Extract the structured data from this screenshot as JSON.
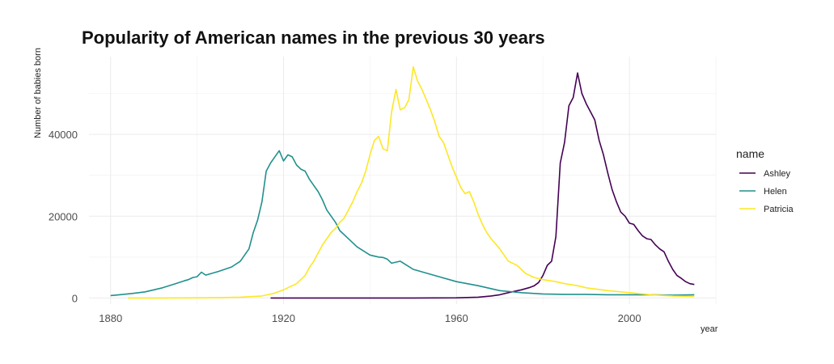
{
  "chart_data": {
    "type": "line",
    "title": "Popularity of American names in the previous 30 years",
    "xlabel": "year",
    "ylabel": "Number of babies born",
    "xlim": [
      1875,
      2020
    ],
    "ylim": [
      -1500,
      59000
    ],
    "x_ticks": [
      1880,
      1920,
      1960,
      2000
    ],
    "x_tick_labels": [
      "1880",
      "1920",
      "1960",
      "2000"
    ],
    "y_ticks": [
      0,
      20000,
      40000
    ],
    "y_tick_labels": [
      "0",
      "20000",
      "40000"
    ],
    "grid": true,
    "legend": {
      "title": "name",
      "position": "right"
    },
    "series": [
      {
        "name": "Ashley",
        "color": "#440154",
        "x": [
          1917,
          1930,
          1940,
          1950,
          1960,
          1965,
          1968,
          1970,
          1972,
          1975,
          1977,
          1978,
          1979,
          1980,
          1981,
          1982,
          1983,
          1984,
          1985,
          1986,
          1987,
          1988,
          1989,
          1990,
          1991,
          1992,
          1993,
          1994,
          1995,
          1996,
          1997,
          1998,
          1999,
          2000,
          2001,
          2002,
          2003,
          2004,
          2005,
          2006,
          2007,
          2008,
          2009,
          2010,
          2011,
          2012,
          2013,
          2014,
          2015
        ],
        "y": [
          0,
          0,
          0,
          0,
          50,
          200,
          500,
          800,
          1300,
          2000,
          2600,
          3000,
          3800,
          5500,
          8000,
          9000,
          15000,
          33000,
          38000,
          47000,
          49000,
          55000,
          50000,
          47500,
          45500,
          43500,
          38500,
          35000,
          30500,
          26500,
          23500,
          21000,
          20000,
          18300,
          18000,
          16500,
          15200,
          14500,
          14300,
          13000,
          12000,
          11300,
          9000,
          7000,
          5500,
          4800,
          4000,
          3500,
          3300
        ]
      },
      {
        "name": "Helen",
        "color": "#21908d",
        "x": [
          1880,
          1882,
          1885,
          1888,
          1890,
          1892,
          1895,
          1897,
          1898,
          1899,
          1900,
          1901,
          1902,
          1905,
          1908,
          1910,
          1911,
          1912,
          1913,
          1914,
          1915,
          1916,
          1917,
          1918,
          1919,
          1920,
          1921,
          1922,
          1923,
          1924,
          1925,
          1926,
          1927,
          1928,
          1929,
          1930,
          1932,
          1933,
          1935,
          1937,
          1940,
          1942,
          1943,
          1944,
          1945,
          1947,
          1950,
          1955,
          1960,
          1965,
          1970,
          1975,
          1980,
          1985,
          1990,
          1995,
          2000,
          2005,
          2010,
          2015
        ],
        "y": [
          600,
          800,
          1100,
          1500,
          2000,
          2500,
          3500,
          4200,
          4500,
          5000,
          5200,
          6300,
          5600,
          6500,
          7600,
          9000,
          10500,
          12000,
          16000,
          19000,
          23500,
          31000,
          33000,
          34500,
          36000,
          33500,
          35000,
          34500,
          32500,
          31500,
          31000,
          29000,
          27500,
          26000,
          24000,
          21500,
          18500,
          16500,
          14500,
          12500,
          10500,
          10000,
          9900,
          9500,
          8500,
          9000,
          7000,
          5500,
          4000,
          3000,
          1800,
          1300,
          1000,
          900,
          900,
          800,
          800,
          800,
          700,
          800
        ]
      },
      {
        "name": "Patricia",
        "color": "#fde725",
        "x": [
          1884,
          1890,
          1900,
          1905,
          1910,
          1915,
          1918,
          1920,
          1923,
          1925,
          1926,
          1927,
          1928,
          1929,
          1930,
          1931,
          1932,
          1933,
          1934,
          1935,
          1936,
          1937,
          1938,
          1939,
          1940,
          1941,
          1942,
          1943,
          1944,
          1945,
          1946,
          1947,
          1948,
          1949,
          1950,
          1951,
          1952,
          1953,
          1954,
          1955,
          1956,
          1957,
          1958,
          1959,
          1960,
          1961,
          1962,
          1963,
          1964,
          1965,
          1966,
          1967,
          1968,
          1970,
          1972,
          1974,
          1976,
          1978,
          1980,
          1983,
          1985,
          1988,
          1990,
          1995,
          2000,
          2005,
          2010,
          2015
        ],
        "y": [
          0,
          0,
          50,
          100,
          200,
          500,
          1200,
          2000,
          3500,
          5500,
          7500,
          9000,
          11000,
          13000,
          14500,
          16000,
          17000,
          18500,
          19500,
          21500,
          23500,
          26000,
          28000,
          31000,
          35000,
          38500,
          39500,
          36500,
          36000,
          45500,
          51000,
          46000,
          46500,
          48500,
          56500,
          53000,
          51000,
          48500,
          46000,
          43000,
          39500,
          38000,
          35000,
          32000,
          29500,
          27000,
          25500,
          26000,
          23500,
          20500,
          18000,
          16000,
          14500,
          12000,
          9000,
          8000,
          6000,
          5000,
          4500,
          4000,
          3500,
          3000,
          2500,
          1800,
          1300,
          800,
          500,
          400
        ]
      }
    ]
  }
}
